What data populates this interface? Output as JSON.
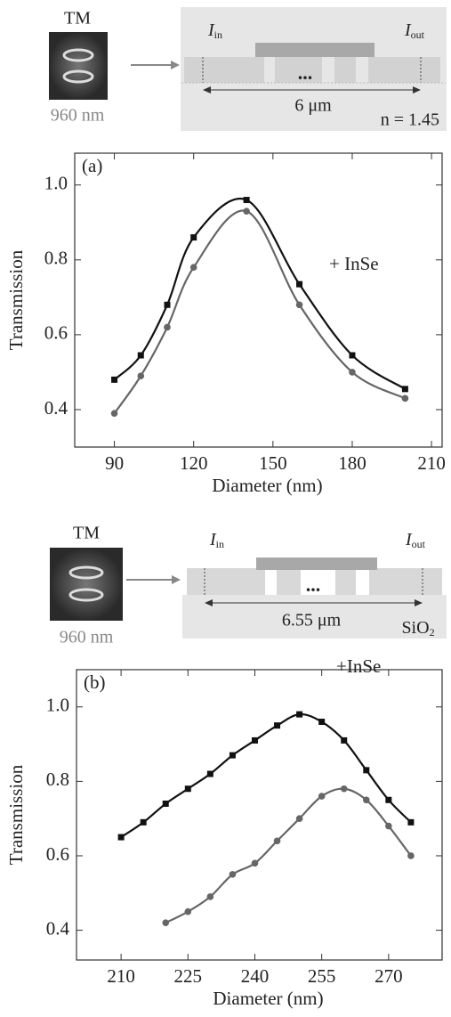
{
  "diagrams": [
    {
      "mode": "TM",
      "wavelength": "960 nm",
      "input": {
        "symbol": "I",
        "sub": "in"
      },
      "output": {
        "symbol": "I",
        "sub": "out"
      },
      "length": "6 μm",
      "medium": "n = 1.45"
    },
    {
      "mode": "TM",
      "wavelength": "960 nm",
      "input": {
        "symbol": "I",
        "sub": "in"
      },
      "output": {
        "symbol": "I",
        "sub": "out"
      },
      "length": "6.55 μm",
      "substrate": {
        "symbol": "SiO",
        "sub": "2"
      }
    }
  ],
  "chart_data": [
    {
      "type": "line",
      "panel": "(a)",
      "x_label": "Diameter (nm)",
      "y_label": "Transmission",
      "annotation": "+ InSe",
      "xlim": [
        75,
        214
      ],
      "xticks": [
        90,
        120,
        150,
        180,
        210
      ],
      "ylim": [
        0.3,
        1.085
      ],
      "yticks": [
        {
          "value": 0.4,
          "label": "0.4"
        },
        {
          "value": 0.6,
          "label": "0.6"
        },
        {
          "value": 0.8,
          "label": "0.8"
        },
        {
          "value": 1.0,
          "label": "1.0"
        }
      ],
      "series": [
        {
          "color": "#111111",
          "marker": "square",
          "x": [
            90,
            100,
            110,
            120,
            140,
            160,
            180,
            200
          ],
          "values": [
            0.48,
            0.545,
            0.68,
            0.86,
            0.96,
            0.735,
            0.545,
            0.455
          ]
        },
        {
          "color": "#666666",
          "marker": "circle",
          "x": [
            90,
            100,
            110,
            120,
            140,
            160,
            180,
            200
          ],
          "values": [
            0.39,
            0.49,
            0.62,
            0.78,
            0.93,
            0.68,
            0.5,
            0.43
          ]
        }
      ]
    },
    {
      "type": "line",
      "panel": "(b)",
      "x_label": "Diameter (nm)",
      "y_label": "Transmission",
      "annotation": "+InSe",
      "xlim": [
        200,
        282
      ],
      "xticks": [
        210,
        225,
        240,
        255,
        270
      ],
      "ylim": [
        0.32,
        1.1
      ],
      "yticks": [
        {
          "value": 0.4,
          "label": "0.4"
        },
        {
          "value": 0.6,
          "label": "0.6"
        },
        {
          "value": 0.8,
          "label": "0.8"
        },
        {
          "value": 1.0,
          "label": "1.0"
        }
      ],
      "series": [
        {
          "color": "#111111",
          "marker": "square",
          "x": [
            210,
            215,
            220,
            225,
            230,
            235,
            240,
            245,
            250,
            255,
            260,
            265,
            270,
            275
          ],
          "values": [
            0.65,
            0.69,
            0.74,
            0.78,
            0.82,
            0.87,
            0.91,
            0.95,
            0.98,
            0.96,
            0.91,
            0.83,
            0.75,
            0.69
          ]
        },
        {
          "color": "#666666",
          "marker": "circle",
          "x": [
            220,
            225,
            230,
            235,
            240,
            245,
            250,
            255,
            260,
            265,
            270,
            275
          ],
          "values": [
            0.42,
            0.45,
            0.49,
            0.55,
            0.58,
            0.64,
            0.7,
            0.76,
            0.78,
            0.75,
            0.68,
            0.6
          ]
        }
      ]
    }
  ]
}
